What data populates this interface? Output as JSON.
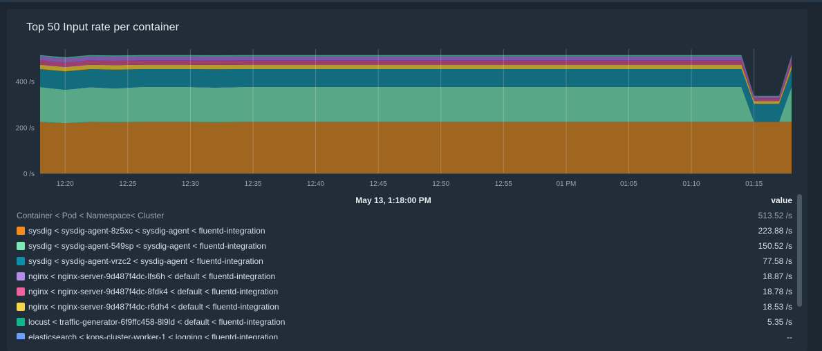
{
  "panel": {
    "title": "Top 50 Input rate per container"
  },
  "chart_data": {
    "type": "area",
    "stacked": true,
    "title": "Top 50 Input rate per container",
    "xlabel": "",
    "ylabel": "",
    "ylim": [
      0,
      540
    ],
    "y_ticks": [
      {
        "value": 0,
        "label": "0 /s"
      },
      {
        "value": 200,
        "label": "200 /s"
      },
      {
        "value": 400,
        "label": "400 /s"
      }
    ],
    "x_range": [
      "12:18",
      "13:18"
    ],
    "x_ticks": [
      {
        "time": "12:20",
        "label": "12:20"
      },
      {
        "time": "12:25",
        "label": "12:25"
      },
      {
        "time": "12:30",
        "label": "12:30"
      },
      {
        "time": "12:35",
        "label": "12:35"
      },
      {
        "time": "12:40",
        "label": "12:40"
      },
      {
        "time": "12:45",
        "label": "12:45"
      },
      {
        "time": "12:50",
        "label": "12:50"
      },
      {
        "time": "12:55",
        "label": "12:55"
      },
      {
        "time": "13:00",
        "label": "01 PM"
      },
      {
        "time": "13:05",
        "label": "01:05"
      },
      {
        "time": "13:10",
        "label": "01:10"
      },
      {
        "time": "13:15",
        "label": "01:15"
      }
    ],
    "grid": true,
    "x": [
      "12:18",
      "12:20",
      "12:22",
      "12:24",
      "12:26",
      "12:28",
      "12:30",
      "12:32",
      "12:34",
      "12:36",
      "12:38",
      "12:40",
      "12:42",
      "12:44",
      "12:46",
      "12:48",
      "12:50",
      "12:52",
      "12:54",
      "12:56",
      "12:58",
      "13:00",
      "13:02",
      "13:04",
      "13:06",
      "13:08",
      "13:10",
      "13:12",
      "13:14",
      "13:15",
      "13:16",
      "13:17",
      "13:18"
    ],
    "series": [
      {
        "name": "sysdig < sysdig-agent-8z5xc < sysdig-agent < fluentd-integration",
        "color": "#a0651f",
        "values": [
          224,
          218,
          224,
          223,
          224,
          224,
          224,
          223,
          224,
          224,
          224,
          224,
          224,
          224,
          224,
          224,
          224,
          224,
          224,
          224,
          224,
          224,
          224,
          224,
          224,
          224,
          224,
          224,
          224,
          224,
          224,
          224,
          224
        ]
      },
      {
        "name": "sysdig < sysdig-agent-549sp < sysdig-agent < fluentd-integration",
        "color": "#58a887",
        "values": [
          151,
          145,
          150,
          146,
          151,
          151,
          151,
          150,
          151,
          151,
          151,
          151,
          151,
          151,
          151,
          151,
          151,
          151,
          151,
          151,
          151,
          151,
          151,
          151,
          151,
          151,
          151,
          151,
          151,
          0,
          0,
          0,
          151
        ]
      },
      {
        "name": "sysdig < sysdig-agent-vrzc2 < sysdig-agent < fluentd-integration",
        "color": "#136b7e",
        "values": [
          78,
          80,
          79,
          82,
          78,
          78,
          78,
          79,
          78,
          78,
          78,
          78,
          78,
          78,
          78,
          78,
          78,
          78,
          78,
          78,
          78,
          78,
          78,
          78,
          78,
          78,
          78,
          78,
          78,
          78,
          78,
          78,
          78
        ]
      },
      {
        "name": "nginx < nginx-server-9d487f4dc-lfs6h < default < fluentd-integration",
        "color": "#b59a2c",
        "values": [
          19,
          19,
          19,
          19,
          19,
          19,
          19,
          19,
          19,
          19,
          19,
          19,
          19,
          19,
          19,
          19,
          19,
          19,
          19,
          19,
          19,
          19,
          19,
          19,
          19,
          19,
          19,
          19,
          19,
          12,
          12,
          12,
          19
        ]
      },
      {
        "name": "nginx < nginx-server-9d487f4dc-8fdk4 < default < fluentd-integration",
        "color": "#9b3f6d",
        "values": [
          19,
          19,
          19,
          19,
          19,
          19,
          19,
          19,
          19,
          19,
          19,
          19,
          19,
          19,
          19,
          19,
          19,
          19,
          19,
          19,
          19,
          19,
          19,
          19,
          19,
          19,
          19,
          19,
          19,
          12,
          12,
          12,
          19
        ]
      },
      {
        "name": "nginx < nginx-server-9d487f4dc-r6dh4 < default < fluentd-integration",
        "color": "#7f55a6",
        "values": [
          18,
          18,
          18,
          18,
          18,
          18,
          18,
          18,
          18,
          18,
          18,
          18,
          18,
          18,
          18,
          18,
          18,
          18,
          18,
          18,
          18,
          18,
          18,
          18,
          18,
          18,
          18,
          18,
          18,
          8,
          8,
          8,
          18
        ]
      },
      {
        "name": "locust < traffic-generator-6f9ffc458-8l9ld < default < fluentd-integration",
        "color": "#3b9a88",
        "values": [
          5,
          5,
          5,
          5,
          5,
          5,
          5,
          5,
          5,
          5,
          5,
          5,
          5,
          5,
          5,
          5,
          5,
          5,
          5,
          5,
          5,
          5,
          5,
          5,
          5,
          5,
          5,
          5,
          5,
          3,
          3,
          3,
          5
        ]
      }
    ],
    "legend_placement": "bottom"
  },
  "legend": {
    "hover_time": "May 13, 1:18:00 PM",
    "value_header": "value",
    "group_label": "Container < Pod < Namespace< Cluster",
    "total_value": "513.52 /s",
    "rows": [
      {
        "label": "sysdig < sysdig-agent-8z5xc < sysdig-agent < fluentd-integration",
        "value": "223.88 /s",
        "color": "#f28c1e"
      },
      {
        "label": "sysdig < sysdig-agent-549sp < sysdig-agent < fluentd-integration",
        "value": "150.52 /s",
        "color": "#7de8b6"
      },
      {
        "label": "sysdig < sysdig-agent-vrzc2 < sysdig-agent < fluentd-integration",
        "value": "77.58 /s",
        "color": "#0e8fa6"
      },
      {
        "label": "nginx < nginx-server-9d487f4dc-lfs6h < default < fluentd-integration",
        "value": "18.87 /s",
        "color": "#b48de8"
      },
      {
        "label": "nginx < nginx-server-9d487f4dc-8fdk4 < default < fluentd-integration",
        "value": "18.78 /s",
        "color": "#f0619e"
      },
      {
        "label": "nginx < nginx-server-9d487f4dc-r6dh4 < default < fluentd-integration",
        "value": "18.53 /s",
        "color": "#f5d54a"
      },
      {
        "label": "locust < traffic-generator-6f9ffc458-8l9ld < default < fluentd-integration",
        "value": "5.35 /s",
        "color": "#13b58c"
      },
      {
        "label": "elasticsearch < kops-cluster-worker-1 < logging < fluentd-integration",
        "value": "--",
        "color": "#6f9ff0"
      }
    ]
  }
}
